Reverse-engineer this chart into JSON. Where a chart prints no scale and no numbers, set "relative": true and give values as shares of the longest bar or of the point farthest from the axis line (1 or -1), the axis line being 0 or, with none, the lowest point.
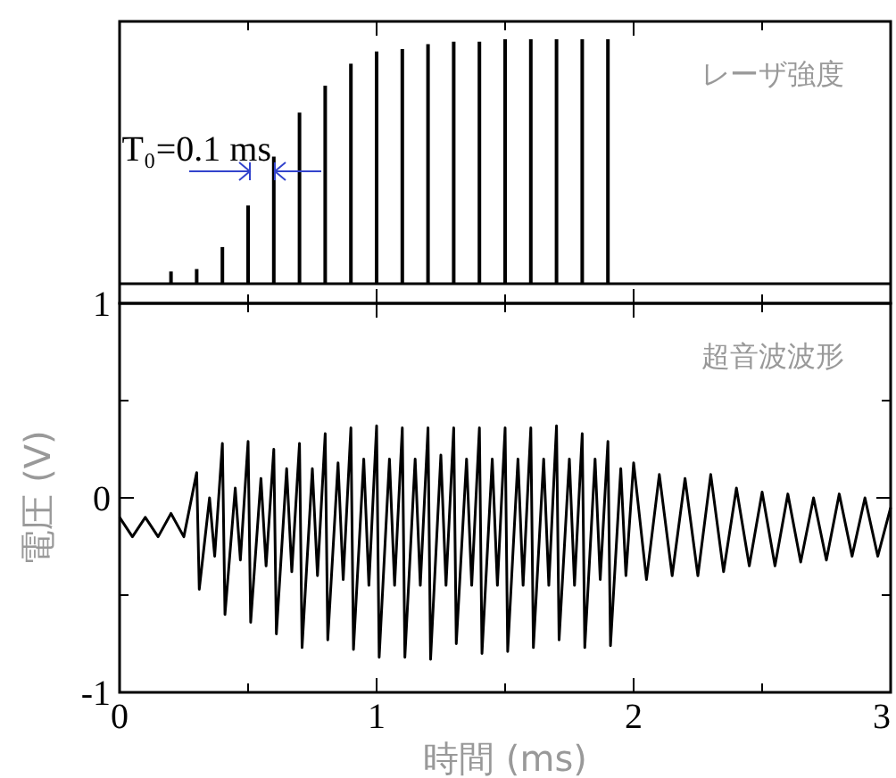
{
  "chart_data": [
    {
      "type": "bar",
      "relative": true,
      "tick_labels": false,
      "xlim": [
        0,
        3
      ],
      "xticks": [
        0,
        {
          "value": 0.5,
          "label": null
        },
        1,
        {
          "value": 1.5,
          "label": null
        },
        2,
        {
          "value": 2.5,
          "label": null
        },
        3
      ],
      "annotations": [
        "T₀=0.1 ms",
        "レーザ強度"
      ],
      "x": [
        0.2,
        0.3,
        0.4,
        0.5,
        0.6,
        0.7,
        0.8,
        0.9,
        1.0,
        1.1,
        1.2,
        1.3,
        1.4,
        1.5,
        1.6,
        1.7,
        1.8,
        1.9
      ],
      "series": [
        {
          "color": "#000000",
          "values": [
            0.05,
            0.06,
            0.15,
            0.32,
            0.52,
            0.7,
            0.81,
            0.9,
            0.95,
            0.96,
            0.98,
            0.99,
            0.99,
            1,
            1,
            1,
            1,
            1
          ]
        }
      ]
    },
    {
      "type": "line",
      "xlabel": "時間 (ms)",
      "ylabel": "電圧 (V)",
      "xlim": [
        0,
        3
      ],
      "xticks": [
        0,
        {
          "value": 0.5,
          "label": null
        },
        1,
        {
          "value": 1.5,
          "label": null
        },
        2,
        {
          "value": 2.5,
          "label": null
        },
        3
      ],
      "ylim": [
        -1,
        1
      ],
      "yticks": [
        -1,
        {
          "value": -0.5,
          "label": null
        },
        0,
        {
          "value": 0.5,
          "label": null
        },
        1
      ],
      "annotations": [
        "超音波波形"
      ],
      "series": [
        {
          "color": "#000000",
          "x": [
            0,
            0.05,
            0.1,
            0.15,
            0.2,
            0.25,
            0.3,
            0.31,
            0.35,
            0.37,
            0.4,
            0.41,
            0.45,
            0.47,
            0.5,
            0.51,
            0.55,
            0.57,
            0.6,
            0.61,
            0.65,
            0.67,
            0.7,
            0.71,
            0.75,
            0.77,
            0.8,
            0.81,
            0.85,
            0.87,
            0.9,
            0.91,
            0.95,
            0.97,
            1.0,
            1.01,
            1.05,
            1.07,
            1.1,
            1.11,
            1.15,
            1.17,
            1.2,
            1.21,
            1.25,
            1.27,
            1.3,
            1.31,
            1.35,
            1.37,
            1.4,
            1.41,
            1.45,
            1.47,
            1.5,
            1.51,
            1.55,
            1.57,
            1.6,
            1.61,
            1.65,
            1.67,
            1.7,
            1.71,
            1.75,
            1.77,
            1.8,
            1.81,
            1.85,
            1.87,
            1.9,
            1.91,
            1.95,
            1.97,
            2.0,
            2.05,
            2.1,
            2.15,
            2.2,
            2.25,
            2.3,
            2.35,
            2.4,
            2.45,
            2.5,
            2.55,
            2.6,
            2.65,
            2.7,
            2.75,
            2.8,
            2.85,
            2.9,
            2.95,
            3.0
          ],
          "values": [
            -0.1,
            -0.2,
            -0.1,
            -0.2,
            -0.08,
            -0.2,
            0.13,
            -0.47,
            0.0,
            -0.3,
            0.28,
            -0.6,
            0.05,
            -0.32,
            0.29,
            -0.64,
            0.1,
            -0.35,
            0.25,
            -0.7,
            0.15,
            -0.38,
            0.28,
            -0.77,
            0.15,
            -0.4,
            0.33,
            -0.73,
            0.18,
            -0.42,
            0.36,
            -0.78,
            0.2,
            -0.45,
            0.37,
            -0.82,
            0.2,
            -0.45,
            0.36,
            -0.82,
            0.2,
            -0.45,
            0.36,
            -0.83,
            0.22,
            -0.45,
            0.36,
            -0.75,
            0.2,
            -0.45,
            0.36,
            -0.8,
            0.2,
            -0.45,
            0.36,
            -0.79,
            0.2,
            -0.45,
            0.36,
            -0.77,
            0.2,
            -0.45,
            0.37,
            -0.73,
            0.2,
            -0.45,
            0.33,
            -0.77,
            0.2,
            -0.42,
            0.29,
            -0.76,
            0.15,
            -0.4,
            0.18,
            -0.42,
            0.12,
            -0.4,
            0.1,
            -0.4,
            0.12,
            -0.38,
            0.05,
            -0.35,
            0.03,
            -0.35,
            0.02,
            -0.33,
            0.0,
            -0.32,
            0.02,
            -0.3,
            0.0,
            -0.3,
            -0.05
          ]
        }
      ]
    }
  ]
}
